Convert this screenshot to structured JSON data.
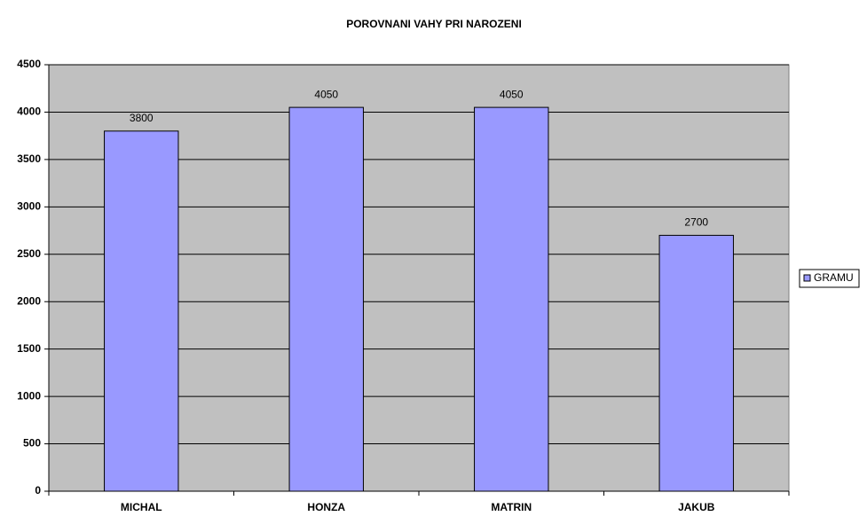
{
  "chart_data": {
    "type": "bar",
    "title": "POROVNANI VAHY PRI NAROZENI",
    "categories": [
      "MICHAL",
      "HONZA",
      "MATRIN",
      "JAKUB"
    ],
    "series": [
      {
        "name": "GRAMU",
        "color": "#9999ff",
        "values": [
          3800,
          4050,
          4050,
          2700
        ]
      }
    ],
    "ylim": [
      0,
      4500
    ],
    "yticks": [
      0,
      500,
      1000,
      1500,
      2000,
      2500,
      3000,
      3500,
      4000,
      4500
    ],
    "grid": true,
    "legend": "right"
  }
}
